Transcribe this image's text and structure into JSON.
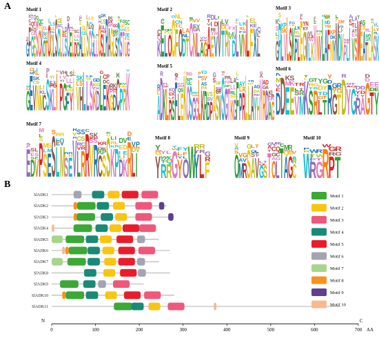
{
  "panels": {
    "a_label": "A",
    "b_label": "B"
  },
  "motif_logos": [
    {
      "title": "Motif 1",
      "letters": "GFGESCKQTQCLSCLLSCELDCALLSCGLLQSLRAGLSRSTUG",
      "width": 150
    },
    {
      "title": "Motif 2",
      "letters": "KELQCFQDTCNLAGAEVVTRIDLVNLFXL",
      "width": 150
    },
    {
      "title": "Motif 3",
      "letters": "GRLVLSKPLEGVLKYNVLAFNYMDKPLIVSMEATLASK",
      "width": 150
    },
    {
      "title": "Motif 4",
      "letters": "GEVNMCSKLIPGFYIVHLLSKDLEKGDCPRK",
      "width": 150
    },
    {
      "title": "Motif 5",
      "letters": "ADKLRSFLEKQSGGLKRDPASVSGTKGFPRLLAYHYRDAG",
      "width": 170
    },
    {
      "title": "Motif 6",
      "letters": "DDEEVMKSRLTRGTDYGRAGTY",
      "width": 150
    },
    {
      "title": "Motif 7",
      "letters": "EDVPSESLMSEVLRRVRCSSKPDKRLI",
      "width": 165
    },
    {
      "title": "Motif 8",
      "letters": "YRRGYQWYLF",
      "width": 80
    },
    {
      "title": "Motif 9",
      "letters": "QMRSAVGSTQLTAGC",
      "width": 90
    },
    {
      "title": "Motif 10",
      "letters": "WRGRPT",
      "width": 55
    }
  ],
  "genes": [
    {
      "name": "SlADK1",
      "length": 210,
      "motifs": [
        [
          6,
          50
        ],
        [
          4,
          92
        ],
        [
          2,
          128
        ],
        [
          5,
          160
        ],
        [
          3,
          205
        ]
      ]
    },
    {
      "name": "SlADK2",
      "length": 262,
      "motifs": [
        [
          8,
          50
        ],
        [
          1,
          58
        ],
        [
          4,
          103
        ],
        [
          2,
          140
        ],
        [
          3,
          191
        ],
        [
          9,
          245
        ]
      ]
    },
    {
      "name": "SlADK3",
      "length": 280,
      "motifs": [
        [
          8,
          50
        ],
        [
          1,
          57
        ],
        [
          4,
          112
        ],
        [
          2,
          145
        ],
        [
          3,
          191
        ],
        [
          9,
          266
        ]
      ]
    },
    {
      "name": "SlADK4",
      "length": 223,
      "motifs": [
        [
          10,
          0
        ],
        [
          1,
          50
        ],
        [
          4,
          100
        ],
        [
          2,
          132
        ],
        [
          5,
          162
        ],
        [
          3,
          200
        ]
      ]
    },
    {
      "name": "SlADK5",
      "length": 245,
      "motifs": [
        [
          7,
          0
        ],
        [
          1,
          32
        ],
        [
          4,
          78
        ],
        [
          2,
          110
        ],
        [
          5,
          148
        ],
        [
          6,
          195
        ]
      ]
    },
    {
      "name": "SlADK6",
      "length": 270,
      "motifs": [
        [
          10,
          24
        ],
        [
          8,
          31
        ],
        [
          1,
          39
        ],
        [
          4,
          82
        ],
        [
          2,
          116
        ],
        [
          5,
          152
        ],
        [
          3,
          198
        ]
      ]
    },
    {
      "name": "SlADK7",
      "length": 245,
      "motifs": [
        [
          7,
          0
        ],
        [
          1,
          36
        ],
        [
          4,
          82
        ],
        [
          2,
          120
        ],
        [
          5,
          152
        ],
        [
          6,
          195
        ]
      ]
    },
    {
      "name": "SlADK8",
      "length": 270,
      "motifs": [
        [
          4,
          74
        ],
        [
          2,
          118
        ],
        [
          5,
          156
        ],
        [
          6,
          197
        ]
      ]
    },
    {
      "name": "SlADK9",
      "length": 210,
      "motifs": [
        [
          1,
          19
        ],
        [
          4,
          72
        ],
        [
          6,
          106
        ],
        [
          3,
          140
        ]
      ]
    },
    {
      "name": "SlADK10",
      "length": 280,
      "motifs": [
        [
          8,
          24
        ],
        [
          1,
          32
        ],
        [
          4,
          78
        ],
        [
          2,
          122
        ],
        [
          5,
          165
        ],
        [
          3,
          211
        ]
      ]
    },
    {
      "name": "SlADK11",
      "length": 660,
      "motifs": [
        [
          1,
          142
        ],
        [
          4,
          182
        ],
        [
          2,
          221
        ],
        [
          3,
          265
        ],
        [
          10,
          370
        ]
      ]
    }
  ],
  "motif_legend": [
    {
      "id": 1,
      "label": "Motif 1",
      "color": "#3aa935"
    },
    {
      "id": 2,
      "label": "Motif 2",
      "color": "#f8c511"
    },
    {
      "id": 3,
      "label": "Motif 3",
      "color": "#f0577a"
    },
    {
      "id": 4,
      "label": "Motif 4",
      "color": "#1a8a78"
    },
    {
      "id": 5,
      "label": "Motif 5",
      "color": "#ea1c2b"
    },
    {
      "id": 6,
      "label": "Motif 6",
      "color": "#a3a3b5"
    },
    {
      "id": 7,
      "label": "Motif 7",
      "color": "#a6d68a"
    },
    {
      "id": 8,
      "label": "Motif 8",
      "color": "#f7931e"
    },
    {
      "id": 9,
      "label": "Motif 9",
      "color": "#5f3f8f"
    },
    {
      "id": 10,
      "label": "Motif 10",
      "color": "#f8b98e"
    }
  ],
  "motif_widths": {
    "1": 42,
    "2": 27,
    "3": 38,
    "4": 28,
    "5": 38,
    "6": 18,
    "7": 25,
    "8": 8,
    "9": 12,
    "10": 6
  },
  "axis": {
    "start_label": "N",
    "end_label": "C",
    "unit": "AA",
    "ticks": [
      0,
      100,
      200,
      300,
      400,
      500,
      600,
      700
    ],
    "max": 700
  },
  "logo_palette": [
    "#1f77b4",
    "#d62728",
    "#2ca02c",
    "#ff7f0e",
    "#9467bd",
    "#e377c2",
    "#17becf",
    "#bcbd22",
    "#8c564b",
    "#f1c40f"
  ]
}
